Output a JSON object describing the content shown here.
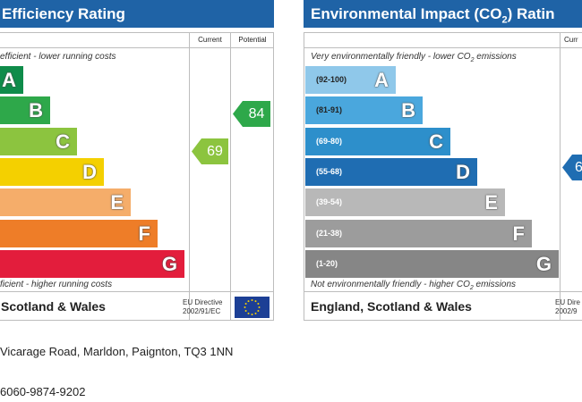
{
  "energy": {
    "title": "Efficiency Rating",
    "col_current": "Current",
    "col_potential": "Potential",
    "top_note": "efficient - lower running costs",
    "bottom_note": "ficient - higher running costs",
    "bands": [
      {
        "letter": "A",
        "color": "#0f8c4a"
      },
      {
        "letter": "B",
        "color": "#2ea84a"
      },
      {
        "letter": "C",
        "color": "#8cc43f"
      },
      {
        "letter": "D",
        "color": "#f4d000"
      },
      {
        "letter": "E",
        "color": "#f5ad6a"
      },
      {
        "letter": "F",
        "color": "#ee7d28"
      },
      {
        "letter": "G",
        "color": "#e31d3c"
      }
    ],
    "current": {
      "value": "69",
      "color": "#8cc43f"
    },
    "potential": {
      "value": "84",
      "color": "#2ea84a"
    },
    "region": "Scotland & Wales",
    "directive_line1": "EU Directive",
    "directive_line2": "2002/91/EC"
  },
  "environment": {
    "title_prefix": "Environmental Impact (CO",
    "title_sub": "2",
    "title_suffix": ") Ratin",
    "col_current": "Curr",
    "top_note_prefix": "Very environmentally friendly - lower CO",
    "top_note_sub": "2",
    "top_note_suffix": " emissions",
    "bottom_note_prefix": "Not environmentally friendly - higher CO",
    "bottom_note_sub": "2",
    "bottom_note_suffix": " emissions",
    "bands": [
      {
        "letter": "A",
        "range": "(92-100)",
        "color": "#8fc8ea"
      },
      {
        "letter": "B",
        "range": "(81-91)",
        "color": "#4aa7dd"
      },
      {
        "letter": "C",
        "range": "(69-80)",
        "color": "#2d8fcb"
      },
      {
        "letter": "D",
        "range": "(55-68)",
        "color": "#1f6db2"
      },
      {
        "letter": "E",
        "range": "(39-54)",
        "color": "#b8b8b8"
      },
      {
        "letter": "F",
        "range": "(21-38)",
        "color": "#9c9c9c"
      },
      {
        "letter": "G",
        "range": "(1-20)",
        "color": "#868686"
      }
    ],
    "current": {
      "value": "6",
      "color": "#1f6db2"
    },
    "region": "England, Scotland & Wales",
    "directive_line1": "EU Dire",
    "directive_line2": "2002/9"
  },
  "address": "Vicarage Road, Marldon, Paignton, TQ3 1NN",
  "reference": "6060-9874-9202"
}
